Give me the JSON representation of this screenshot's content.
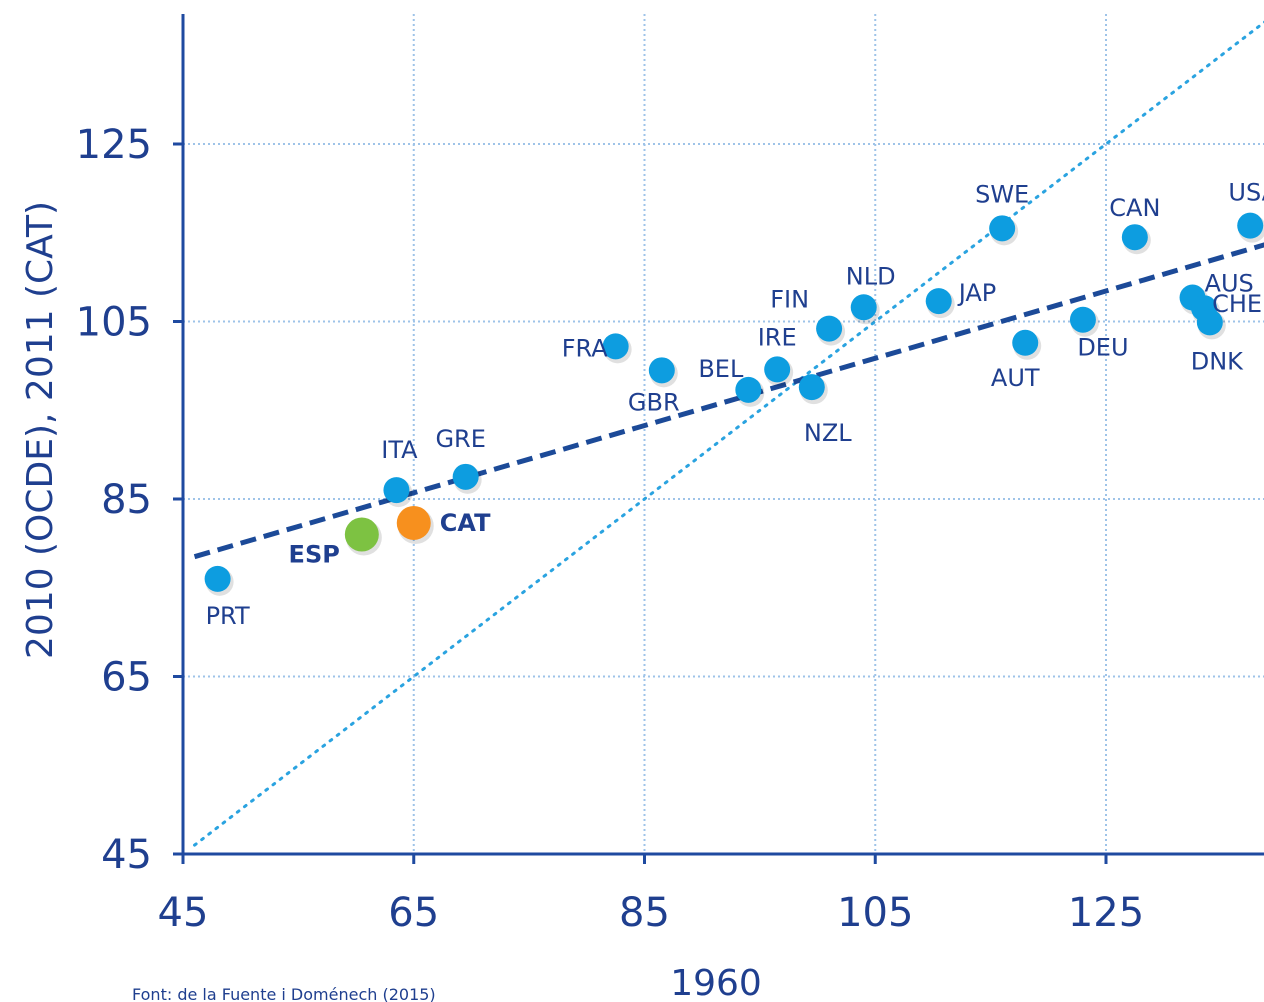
{
  "chart_data": {
    "type": "scatter",
    "title": "",
    "xlabel": "1960",
    "ylabel": "2010 (OCDE), 2011 (CAT)",
    "xlim": [
      45,
      141
    ],
    "ylim": [
      45,
      137
    ],
    "xticks": [
      45,
      65,
      85,
      105,
      125
    ],
    "yticks": [
      45,
      65,
      85,
      105,
      125
    ],
    "grid": true,
    "source": "Font: de la Fuente i Doménech (2015)",
    "colors": {
      "axis": "#1f4aa0",
      "text": "#1f3f8f",
      "point": "#0d9de0",
      "esp": "#7dc242",
      "cat": "#f7901e",
      "trend": "#1c4a98",
      "diagonal": "#2aa3e0",
      "grid": "#9ec3e8"
    },
    "points": [
      {
        "label": "PRT",
        "x": 48,
        "y": 76,
        "color": "point"
      },
      {
        "label": "ESP",
        "x": 60.5,
        "y": 81,
        "color": "esp",
        "bold": true
      },
      {
        "label": "ITA",
        "x": 63.5,
        "y": 86,
        "color": "point"
      },
      {
        "label": "CAT",
        "x": 65,
        "y": 82.3,
        "color": "cat",
        "bold": true
      },
      {
        "label": "GRE",
        "x": 69.5,
        "y": 87.5,
        "color": "point"
      },
      {
        "label": "FRA",
        "x": 82.5,
        "y": 102.2,
        "color": "point"
      },
      {
        "label": "GBR",
        "x": 86.5,
        "y": 99.5,
        "color": "point"
      },
      {
        "label": "BEL",
        "x": 94,
        "y": 97.3,
        "color": "point"
      },
      {
        "label": "IRE",
        "x": 96.5,
        "y": 99.6,
        "color": "point"
      },
      {
        "label": "NZL",
        "x": 99.5,
        "y": 97.6,
        "color": "point"
      },
      {
        "label": "FIN",
        "x": 101,
        "y": 104.2,
        "color": "point"
      },
      {
        "label": "NLD",
        "x": 104,
        "y": 106.6,
        "color": "point"
      },
      {
        "label": "JAP",
        "x": 110.5,
        "y": 107.3,
        "color": "point"
      },
      {
        "label": "SWE",
        "x": 116,
        "y": 115.5,
        "color": "point"
      },
      {
        "label": "AUT",
        "x": 118,
        "y": 102.6,
        "color": "point"
      },
      {
        "label": "DEU",
        "x": 123,
        "y": 105.2,
        "color": "point"
      },
      {
        "label": "CAN",
        "x": 127.5,
        "y": 114.5,
        "color": "point"
      },
      {
        "label": "AUS",
        "x": 132.5,
        "y": 107.7,
        "color": "point"
      },
      {
        "label": "CHE",
        "x": 133.5,
        "y": 106.5,
        "color": "point"
      },
      {
        "label": "DNK",
        "x": 134,
        "y": 104.9,
        "color": "point"
      },
      {
        "label": "USA",
        "x": 137.5,
        "y": 115.8,
        "color": "point"
      }
    ],
    "trendline": {
      "x": [
        46,
        141
      ],
      "y": [
        78.5,
        114.5
      ]
    },
    "diagonal": {
      "x": [
        46,
        141
      ],
      "y": [
        46,
        141
      ]
    }
  }
}
